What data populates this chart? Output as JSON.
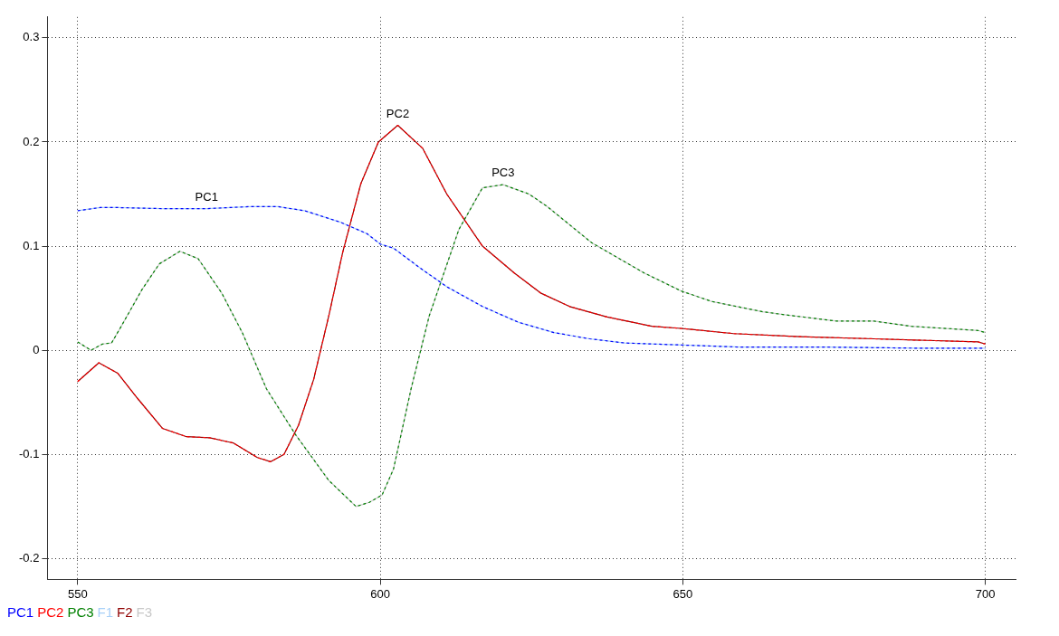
{
  "chart_data": {
    "type": "line",
    "xlim": [
      545,
      705
    ],
    "ylim": [
      -0.22,
      0.32
    ],
    "xticks": [
      550,
      600,
      650,
      700
    ],
    "yticks": [
      -0.2,
      -0.1,
      0,
      0.1,
      0.2,
      0.3
    ],
    "grid": true,
    "legend": "bottom left",
    "annotations": [
      {
        "text": "PC1",
        "x": 571.3,
        "y": 0.136
      },
      {
        "text": "PC2",
        "x": 602.9,
        "y": 0.216
      },
      {
        "text": "PC3",
        "x": 620.3,
        "y": 0.159
      }
    ],
    "series": [
      {
        "name": "PC1",
        "color": "#0000ff",
        "line_style": "dashed",
        "x": [
          550,
          553.7,
          556.6,
          564,
          571.3,
          578.7,
          583,
          587.5,
          593.4,
          597.8,
          600,
          602.2,
          606.6,
          611,
          616.9,
          622.8,
          628.7,
          634.6,
          640.4,
          650,
          659.6,
          674,
          689,
          700
        ],
        "values": [
          0.134,
          0.137,
          0.137,
          0.136,
          0.136,
          0.138,
          0.138,
          0.134,
          0.123,
          0.112,
          0.102,
          0.098,
          0.079,
          0.061,
          0.042,
          0.027,
          0.017,
          0.011,
          0.007,
          0.005,
          0.003,
          0.003,
          0.002,
          0.002
        ]
      },
      {
        "name": "PC2",
        "color": "#ff0000",
        "line_style": "dashed",
        "x": [
          550,
          553.5,
          556.6,
          560,
          564,
          568,
          571.8,
          575.7,
          579.7,
          581.9,
          584.1,
          586.5,
          589,
          591.5,
          593.8,
          596.8,
          599.7,
          602.9,
          607,
          611,
          616.9,
          622.2,
          626.5,
          631.3,
          637.5,
          644.9,
          649.7,
          658.4,
          669.4,
          681.6,
          698.8,
          700
        ],
        "values": [
          -0.03,
          -0.012,
          -0.022,
          -0.047,
          -0.075,
          -0.083,
          -0.084,
          -0.089,
          -0.103,
          -0.107,
          -0.1,
          -0.072,
          -0.028,
          0.033,
          0.094,
          0.16,
          0.2,
          0.216,
          0.194,
          0.15,
          0.1,
          0.074,
          0.055,
          0.042,
          0.032,
          0.023,
          0.021,
          0.016,
          0.013,
          0.011,
          0.008,
          0.006
        ]
      },
      {
        "name": "PC3",
        "color": "#008000",
        "line_style": "dashed",
        "x": [
          550,
          552.2,
          554.1,
          555.6,
          557.1,
          560.6,
          563.5,
          566.9,
          569.9,
          573.8,
          577.2,
          581.2,
          586,
          591.5,
          596,
          598.2,
          600.3,
          602.2,
          605.1,
          608.1,
          613,
          616.9,
          620.3,
          624.6,
          627.6,
          635,
          643.7,
          649.7,
          654.7,
          663.2,
          667,
          675.4,
          681.6,
          687.8,
          698.8,
          700
        ],
        "values": [
          0.008,
          0,
          0.006,
          0.007,
          0.022,
          0.058,
          0.083,
          0.095,
          0.088,
          0.055,
          0.017,
          -0.037,
          -0.081,
          -0.125,
          -0.15,
          -0.146,
          -0.139,
          -0.114,
          -0.037,
          0.033,
          0.116,
          0.156,
          0.159,
          0.15,
          0.138,
          0.103,
          0.074,
          0.057,
          0.047,
          0.037,
          0.034,
          0.028,
          0.028,
          0.023,
          0.019,
          0.017
        ]
      },
      {
        "name": "F1",
        "color": "#a8d0f8",
        "x": [
          550,
          553.7,
          556.6,
          564,
          571.3,
          578.7,
          583,
          587.5,
          593.4,
          597.8,
          600,
          602.2,
          606.6,
          611,
          616.9,
          622.8,
          628.7,
          634.6,
          640.4,
          650,
          659.6,
          674,
          689,
          700
        ],
        "values": [
          0.134,
          0.137,
          0.137,
          0.136,
          0.136,
          0.138,
          0.138,
          0.134,
          0.123,
          0.112,
          0.102,
          0.098,
          0.079,
          0.061,
          0.042,
          0.027,
          0.017,
          0.011,
          0.007,
          0.005,
          0.003,
          0.003,
          0.002,
          0.002
        ]
      },
      {
        "name": "F2",
        "color": "#900000",
        "x": [
          550,
          553.5,
          556.6,
          560,
          564,
          568,
          571.8,
          575.7,
          579.7,
          581.9,
          584.1,
          586.5,
          589,
          591.5,
          593.8,
          596.8,
          599.7,
          602.9,
          607,
          611,
          616.9,
          622.2,
          626.5,
          631.3,
          637.5,
          644.9,
          649.7,
          658.4,
          669.4,
          681.6,
          698.8,
          700
        ],
        "values": [
          -0.03,
          -0.012,
          -0.022,
          -0.047,
          -0.075,
          -0.083,
          -0.084,
          -0.089,
          -0.103,
          -0.107,
          -0.1,
          -0.072,
          -0.028,
          0.033,
          0.094,
          0.16,
          0.2,
          0.216,
          0.194,
          0.15,
          0.1,
          0.074,
          0.055,
          0.042,
          0.032,
          0.023,
          0.021,
          0.016,
          0.013,
          0.011,
          0.008,
          0.006
        ]
      },
      {
        "name": "F3",
        "color": "#c8c8c8",
        "x": [
          550,
          552.2,
          554.1,
          555.6,
          557.1,
          560.6,
          563.5,
          566.9,
          569.9,
          573.8,
          577.2,
          581.2,
          586,
          591.5,
          596,
          598.2,
          600.3,
          602.2,
          605.1,
          608.1,
          613,
          616.9,
          620.3,
          624.6,
          627.6,
          635,
          643.7,
          649.7,
          654.7,
          663.2,
          667,
          675.4,
          681.6,
          687.8,
          698.8,
          700
        ],
        "values": [
          0.008,
          0,
          0.006,
          0.007,
          0.022,
          0.058,
          0.083,
          0.095,
          0.088,
          0.055,
          0.017,
          -0.037,
          -0.081,
          -0.125,
          -0.15,
          -0.146,
          -0.139,
          -0.114,
          -0.037,
          0.033,
          0.116,
          0.156,
          0.159,
          0.15,
          0.138,
          0.103,
          0.074,
          0.057,
          0.047,
          0.037,
          0.034,
          0.028,
          0.028,
          0.023,
          0.019,
          0.017
        ]
      }
    ]
  }
}
